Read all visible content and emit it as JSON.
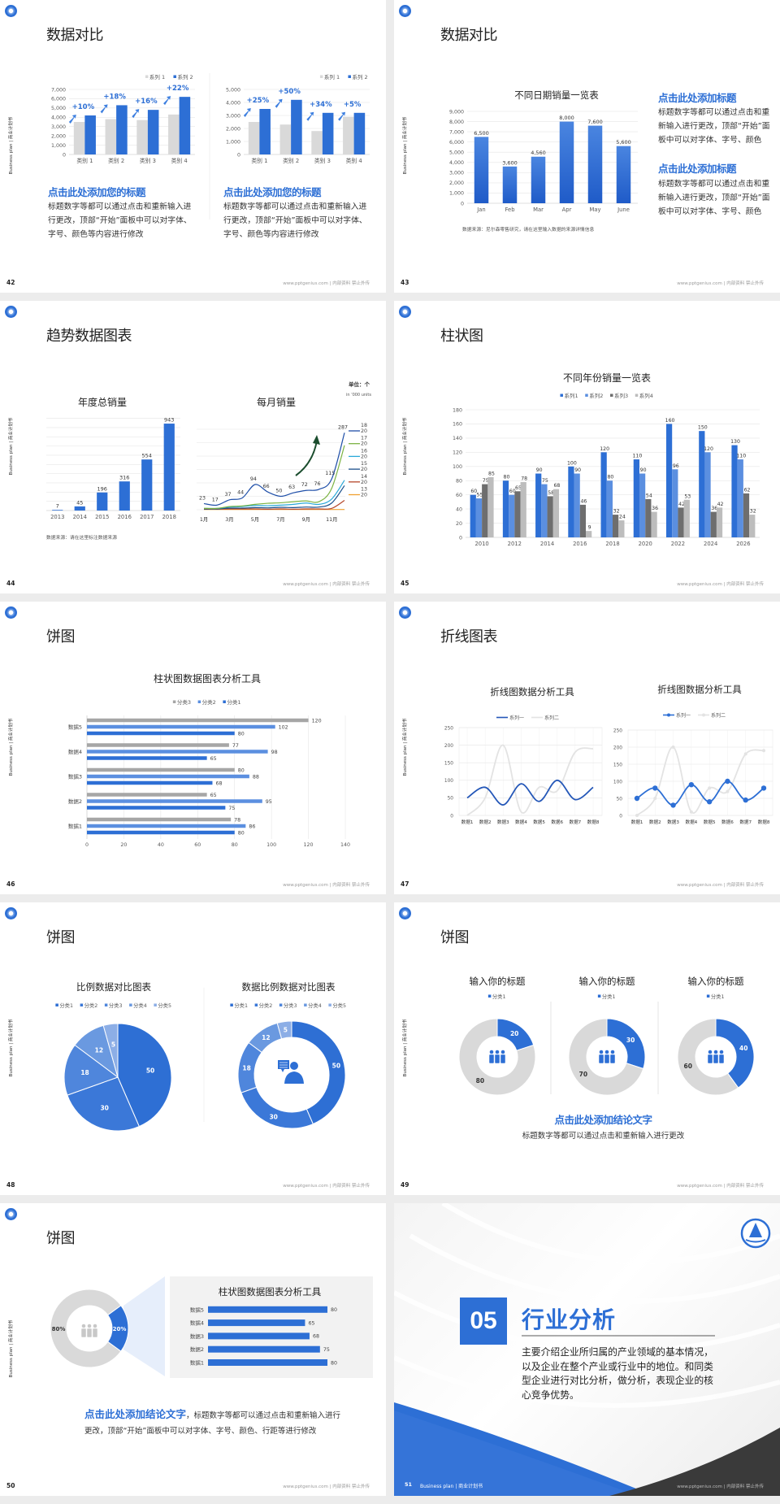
{
  "deck": {
    "side_label": "Business plan | 商业计划书",
    "footer": "www.pptgenius.com | 内部资料 禁止外传",
    "colors": {
      "accent": "#2d6fd5",
      "light_accent": "#5b8fe0",
      "gray": "#d9d9d9",
      "dark": "#3a3a3a"
    }
  },
  "slides": [
    {
      "number": "42",
      "title": "数据对比",
      "blocks": [
        {
          "heading": "点击此处添加您的标题",
          "body": "标题数字等都可以通过点击和重新输入进行更改，顶部“开始”面板中可以对字体、字号、颜色等内容进行修改"
        },
        {
          "heading": "点击此处添加您的标题",
          "body": "标题数字等都可以通过点击和重新输入进行更改，顶部“开始”面板中可以对字体、字号、颜色等内容进行修改"
        }
      ]
    },
    {
      "number": "43",
      "title": "数据对比",
      "blocks": [
        {
          "heading": "点击此处添加标题",
          "body": "标题数字等都可以通过点击和重新输入进行更改，顶部“开始”面板中可以对字体、字号、颜色"
        },
        {
          "heading": "点击此处添加标题",
          "body": "标题数字等都可以通过点击和重新输入进行更改，顶部“开始”面板中可以对字体、字号、颜色"
        }
      ]
    },
    {
      "number": "44",
      "title": "趋势数据图表"
    },
    {
      "number": "45",
      "title": "柱状图"
    },
    {
      "number": "46",
      "title": "饼图"
    },
    {
      "number": "47",
      "title": "折线图表"
    },
    {
      "number": "48",
      "title": "饼图"
    },
    {
      "number": "49",
      "title": "饼图",
      "conclusion": "点击此处添加结论文字",
      "body": "标题数字等都可以通过点击和重新输入进行更改"
    },
    {
      "number": "50",
      "title": "饼图",
      "conclusion": "点击此处添加结论文字",
      "body": "，标题数字等都可以通过点击和重新输入进行更改，顶部“开始”面板中可以对字体、字号、颜色、行距等进行修改"
    },
    {
      "number": "51",
      "section_number": "05",
      "title": "行业分析",
      "body": "主要介绍企业所归属的产业领域的基本情况，以及企业在整个产业或行业中的地位。和同类型企业进行对比分析，做分析，表现企业的核心竞争优势。",
      "footer_label": "Business plan | 商业计划书"
    }
  ],
  "chart_data": [
    {
      "type": "bar",
      "categories": [
        "类别 1",
        "类别 2",
        "类别 3",
        "类别 4"
      ],
      "series": [
        {
          "name": "系列 1",
          "values": [
            3500,
            3800,
            3700,
            4300
          ],
          "color": "#d9d9d9"
        },
        {
          "name": "系列 2",
          "values": [
            4200,
            5300,
            4800,
            6200
          ],
          "color": "#2d6fd5"
        }
      ],
      "ylim": [
        0,
        7000
      ],
      "ytick_step": 1000,
      "annotations": [
        "+10%",
        "+18%",
        "+16%",
        "+22%"
      ],
      "legend": "top-right",
      "grid": true
    },
    {
      "type": "bar",
      "categories": [
        "类别 1",
        "类别 2",
        "类别 3",
        "类别 4"
      ],
      "series": [
        {
          "name": "系列 1",
          "values": [
            2500,
            2300,
            1800,
            2900
          ],
          "color": "#d9d9d9"
        },
        {
          "name": "系列 2",
          "values": [
            3500,
            4200,
            3200,
            3200
          ],
          "color": "#2d6fd5"
        }
      ],
      "ylim": [
        0,
        5000
      ],
      "ytick_step": 1000,
      "annotations": [
        "+25%",
        "+50%",
        "+34%",
        "+5%"
      ],
      "legend": "top-right",
      "grid": true
    },
    {
      "type": "bar",
      "title": "不同日期销量一览表",
      "categories": [
        "Jan",
        "Feb",
        "Mar",
        "Apr",
        "May",
        "June"
      ],
      "series": [
        {
          "values": [
            6500,
            3600,
            4560,
            8000,
            7600,
            5600
          ],
          "color": "#2d6fd5"
        }
      ],
      "ylim": [
        0,
        9000
      ],
      "ytick_step": 1000,
      "data_labels": true,
      "grid": true,
      "note": "数据来源：尼尔森零售研究，请在这里输入数据的来源详情信息"
    },
    {
      "type": "bar",
      "title": "年度总销量",
      "categories": [
        "2013",
        "2014",
        "2015",
        "2016",
        "2017",
        "2018"
      ],
      "series": [
        {
          "values": [
            7,
            45,
            196,
            316,
            554,
            943
          ],
          "color": "#2d6fd5"
        }
      ],
      "ylim": [
        0,
        1000
      ],
      "ytick_step": 100,
      "ytick_labels": false,
      "data_labels": true,
      "grid": true,
      "note": "数据来源：请在这里标注数据来源"
    },
    {
      "type": "line",
      "title": "每月销量",
      "unit": "单位：个",
      "unit_note": "in '000 units",
      "categories": [
        "1月",
        "2月",
        "3月",
        "4月",
        "5月",
        "6月",
        "7月",
        "8月",
        "9月",
        "10月",
        "11月",
        "12月"
      ],
      "series": [
        {
          "name": "2018",
          "color": "#1f4fa8",
          "values": [
            23,
            17,
            37,
            44,
            94,
            66,
            50,
            63,
            72,
            76,
            115,
            287
          ],
          "labels": true
        },
        {
          "name": "2017",
          "color": "#7cb342",
          "values": [
            5,
            5,
            12,
            14,
            20,
            24,
            26,
            30,
            33,
            30,
            80,
            240
          ]
        },
        {
          "name": "2016",
          "color": "#29a8d8",
          "values": [
            5,
            5,
            10,
            12,
            16,
            15,
            17,
            20,
            25,
            20,
            40,
            110
          ]
        },
        {
          "name": "2015",
          "color": "#1a4f8a",
          "values": [
            3,
            3,
            6,
            6,
            8,
            7,
            9,
            8,
            10,
            10,
            25,
            90
          ]
        },
        {
          "name": "2014",
          "color": "#b5472a",
          "values": [
            2,
            2,
            3,
            3,
            3,
            2,
            3,
            2,
            3,
            3,
            5,
            35
          ]
        },
        {
          "name": "2013",
          "color": "#f0a030",
          "values": [
            1,
            1,
            1,
            1,
            1,
            1,
            1,
            1,
            1,
            1,
            1,
            1
          ]
        }
      ],
      "ylim": [
        0,
        300
      ],
      "ytick_step": 50,
      "ytick_labels": false,
      "grid": true,
      "legend": "right"
    },
    {
      "type": "bar",
      "title": "不同年份销量一览表",
      "categories": [
        "2010",
        "2012",
        "2014",
        "2016",
        "2018",
        "2020",
        "2022",
        "2024",
        "2026"
      ],
      "series": [
        {
          "name": "系列1",
          "color": "#2d6fd5",
          "values": [
            60,
            80,
            90,
            100,
            120,
            110,
            160,
            150,
            130
          ]
        },
        {
          "name": "系列2",
          "color": "#5b8fe0",
          "values": [
            55,
            60,
            75,
            90,
            80,
            90,
            96,
            120,
            110
          ]
        },
        {
          "name": "系列3",
          "color": "#6e6e6e",
          "values": [
            75,
            65,
            58,
            46,
            32,
            54,
            42,
            36,
            62
          ]
        },
        {
          "name": "系列4",
          "color": "#bdbdbd",
          "values": [
            85,
            78,
            68,
            9,
            24,
            36,
            53,
            42,
            32
          ]
        }
      ],
      "ylim": [
        0,
        180
      ],
      "ytick_step": 20,
      "data_labels": true,
      "legend": "top",
      "grid": true
    },
    {
      "type": "hbar",
      "title": "柱状图数据图表分析工具",
      "categories": [
        "数据1",
        "数据2",
        "数据3",
        "数据4",
        "数据5"
      ],
      "series": [
        {
          "name": "分类3",
          "color": "#a6a6a6",
          "values": [
            78,
            65,
            80,
            77,
            120
          ]
        },
        {
          "name": "分类2",
          "color": "#5b8fe0",
          "values": [
            86,
            95,
            88,
            98,
            102
          ]
        },
        {
          "name": "分类1",
          "color": "#2d6fd5",
          "values": [
            80,
            75,
            68,
            65,
            80
          ]
        }
      ],
      "xlim": [
        0,
        140
      ],
      "xtick_step": 20,
      "data_labels": true,
      "legend": "top",
      "grid": true
    },
    {
      "type": "line",
      "title": "折线图数据分析工具",
      "categories": [
        "数据1",
        "数据2",
        "数据3",
        "数据4",
        "数据5",
        "数据6",
        "数据7",
        "数据8"
      ],
      "series": [
        {
          "name": "系列一",
          "color": "#2457b8",
          "values": [
            50,
            80,
            30,
            90,
            40,
            100,
            45,
            80
          ]
        },
        {
          "name": "系列二",
          "color": "#e3e3e3",
          "values": [
            0,
            50,
            200,
            10,
            80,
            70,
            180,
            190
          ]
        }
      ],
      "ylim": [
        0,
        250
      ],
      "ytick_step": 50,
      "legend": "top",
      "grid": true,
      "smooth": true
    },
    {
      "type": "line",
      "title": "折线图数据分析工具",
      "categories": [
        "数据1",
        "数据2",
        "数据3",
        "数据4",
        "数据5",
        "数据6",
        "数据7",
        "数据8"
      ],
      "series": [
        {
          "name": "系列一",
          "color": "#2d6fd5",
          "values": [
            50,
            80,
            30,
            90,
            40,
            100,
            45,
            80
          ],
          "markers": true
        },
        {
          "name": "系列二",
          "color": "#e3e3e3",
          "values": [
            0,
            50,
            200,
            10,
            80,
            70,
            180,
            190
          ],
          "markers": true
        }
      ],
      "ylim": [
        0,
        250
      ],
      "ytick_step": 50,
      "legend": "top",
      "grid": true,
      "smooth": true
    },
    {
      "type": "pie",
      "title": "比例数据对比图表",
      "categories": [
        "分类1",
        "分类2",
        "分类3",
        "分类4",
        "分类5"
      ],
      "values": [
        50,
        30,
        18,
        12,
        5
      ],
      "colors": [
        "#2e6fd4",
        "#3b78d8",
        "#4f86dc",
        "#6a99e0",
        "#8caee6"
      ],
      "legend": "top"
    },
    {
      "type": "donut",
      "title": "数据比例数据对比图表",
      "categories": [
        "分类1",
        "分类2",
        "分类3",
        "分类4",
        "分类5"
      ],
      "values": [
        50,
        30,
        18,
        12,
        5
      ],
      "colors": [
        "#2e6fd4",
        "#3b78d8",
        "#4f86dc",
        "#6a99e0",
        "#8caee6"
      ],
      "legend": "top",
      "center_icon": "support-agent-icon"
    },
    {
      "type": "donut",
      "title": "输入你的标题",
      "legend_label": "分类1",
      "values": [
        20,
        80
      ],
      "colors": [
        "#2d6fd5",
        "#d9d9d9"
      ],
      "center_icon": "people-group-icon"
    },
    {
      "type": "donut",
      "title": "输入你的标题",
      "legend_label": "分类1",
      "values": [
        30,
        70
      ],
      "colors": [
        "#2d6fd5",
        "#d9d9d9"
      ],
      "center_icon": "people-group-icon"
    },
    {
      "type": "donut",
      "title": "输入你的标题",
      "legend_label": "分类1",
      "values": [
        40,
        60
      ],
      "colors": [
        "#2d6fd5",
        "#d9d9d9"
      ],
      "center_icon": "people-group-icon"
    },
    {
      "type": "donut",
      "values": [
        20,
        80
      ],
      "data_labels": [
        "20%",
        "80%"
      ],
      "colors": [
        "#2d6fd5",
        "#d9d9d9"
      ],
      "center_icon": "team-icon"
    },
    {
      "type": "hbar",
      "title": "柱状图数据图表分析工具",
      "categories": [
        "数据1",
        "数据2",
        "数据3",
        "数据4",
        "数据5"
      ],
      "series": [
        {
          "color": "#2d6fd5",
          "values": [
            80,
            75,
            68,
            65,
            80
          ]
        }
      ],
      "data_labels": true
    }
  ]
}
